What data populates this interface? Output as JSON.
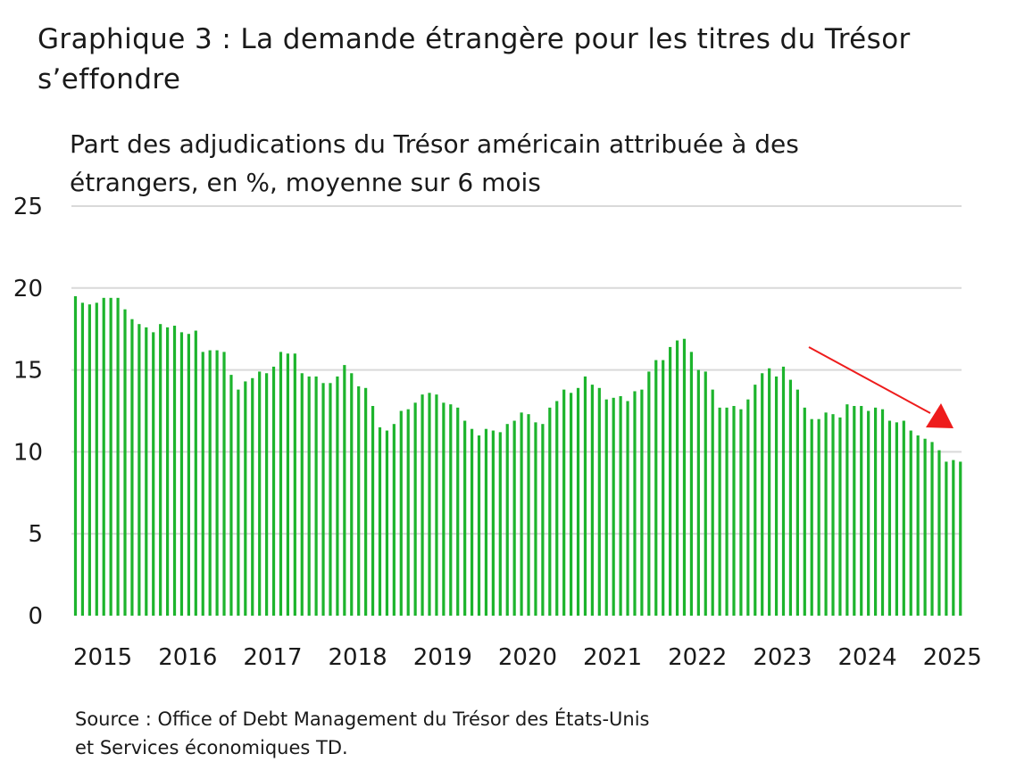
{
  "title_line1": "Graphique 3 : La demande étrangère pour les titres du Trésor",
  "title_line2": "s’effondre",
  "source_line1": "Source : Office of Debt Management du Trésor des États-Unis",
  "source_line2": "et Services économiques TD.",
  "colors": {
    "bar": "#1db42d",
    "grid": "#d9d9d9",
    "arrow": "#ee1c1c"
  },
  "chart_data": {
    "type": "bar",
    "title": "Graphique 3 : La demande étrangère pour les titres du Trésor s’effondre",
    "subtitle_line1": "Part des adjudications du Trésor américain attribuée à des",
    "subtitle_line2": "étrangers, en %, moyenne sur 6 mois",
    "xlabel": "",
    "ylabel": "",
    "ylim": [
      0,
      25
    ],
    "yticks": [
      "0",
      "5",
      "10",
      "15",
      "20",
      "25"
    ],
    "x_tick_labels": [
      "2015",
      "2016",
      "2017",
      "2018",
      "2019",
      "2020",
      "2021",
      "2022",
      "2023",
      "2024",
      "2025"
    ],
    "x_start": "2015-01",
    "frequency": "monthly",
    "grid": true,
    "legend": "none",
    "annotation": "red downward arrow highlighting decline in 2024-2025",
    "values": [
      19.5,
      19.1,
      19.0,
      19.1,
      19.4,
      19.4,
      19.4,
      18.7,
      18.1,
      17.8,
      17.6,
      17.3,
      17.8,
      17.6,
      17.7,
      17.3,
      17.2,
      17.4,
      16.1,
      16.2,
      16.2,
      16.1,
      14.7,
      13.8,
      14.3,
      14.5,
      14.9,
      14.8,
      15.2,
      16.1,
      16.0,
      16.0,
      14.8,
      14.6,
      14.6,
      14.2,
      14.2,
      14.6,
      15.3,
      14.8,
      14.0,
      13.9,
      12.8,
      11.5,
      11.3,
      11.7,
      12.5,
      12.6,
      13.0,
      13.5,
      13.6,
      13.5,
      13.0,
      12.9,
      12.7,
      11.9,
      11.4,
      11.0,
      11.4,
      11.3,
      11.2,
      11.7,
      11.9,
      12.4,
      12.3,
      11.8,
      11.7,
      12.7,
      13.1,
      13.8,
      13.6,
      13.9,
      14.6,
      14.1,
      13.9,
      13.2,
      13.3,
      13.4,
      13.1,
      13.7,
      13.8,
      14.9,
      15.6,
      15.6,
      16.4,
      16.8,
      16.9,
      16.1,
      15.0,
      14.9,
      13.8,
      12.7,
      12.7,
      12.8,
      12.6,
      13.2,
      14.1,
      14.8,
      15.1,
      14.6,
      15.2,
      14.4,
      13.8,
      12.7,
      12.0,
      12.0,
      12.4,
      12.3,
      12.1,
      12.9,
      12.8,
      12.8,
      12.5,
      12.7,
      12.6,
      11.9,
      11.8,
      11.9,
      11.3,
      11.0,
      10.8,
      10.6,
      10.1,
      9.4,
      9.5,
      9.4
    ]
  }
}
